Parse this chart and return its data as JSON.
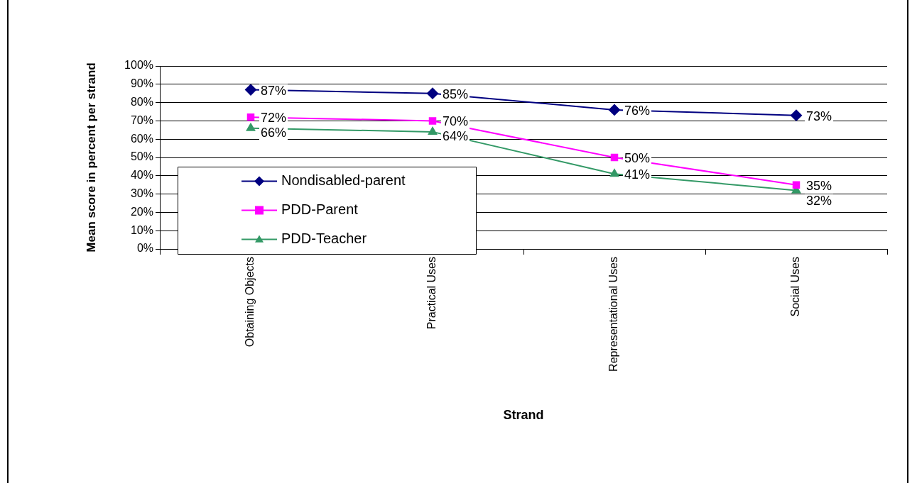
{
  "chart_data": {
    "type": "line",
    "xlabel": "Strand",
    "ylabel": "Mean score in percent per strand",
    "categories": [
      "Obtaining Objects",
      "Practical Uses",
      "Representational Uses",
      "Social Uses"
    ],
    "series": [
      {
        "name": "Nondisabled-parent",
        "color": "#000080",
        "marker": "diamond",
        "values": [
          87,
          85,
          76,
          73
        ],
        "value_labels": [
          "87%",
          "85%",
          "76%",
          "73%"
        ]
      },
      {
        "name": "PDD-Parent",
        "color": "#ff00ff",
        "marker": "square",
        "values": [
          72,
          70,
          50,
          35
        ],
        "value_labels": [
          "72%",
          "70%",
          "50%",
          "35%"
        ]
      },
      {
        "name": "PDD-Teacher",
        "color": "#339966",
        "marker": "triangle",
        "values": [
          66,
          64,
          41,
          32
        ],
        "value_labels": [
          "66%",
          "64%",
          "41%",
          "32%"
        ]
      }
    ],
    "ylim": [
      0,
      100
    ],
    "yticks": [
      {
        "value": 0,
        "label": "0%"
      },
      {
        "value": 10,
        "label": "10%"
      },
      {
        "value": 20,
        "label": "20%"
      },
      {
        "value": 30,
        "label": "30%"
      },
      {
        "value": 40,
        "label": "40%"
      },
      {
        "value": 50,
        "label": "50%"
      },
      {
        "value": 60,
        "label": "60%"
      },
      {
        "value": 70,
        "label": "70%"
      },
      {
        "value": 80,
        "label": "80%"
      },
      {
        "value": 90,
        "label": "90%"
      },
      {
        "value": 100,
        "label": "100%"
      }
    ],
    "grid": "y",
    "legend": "bottom left",
    "line_style": "solid"
  }
}
